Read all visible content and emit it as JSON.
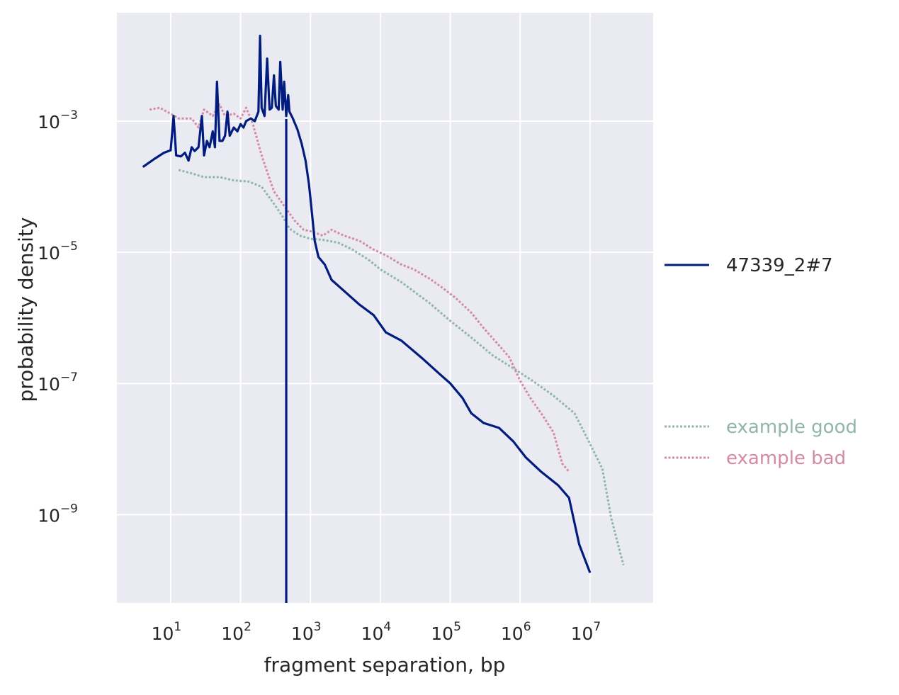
{
  "chart_data": {
    "type": "line",
    "title": "",
    "xlabel": "fragment separation, bp",
    "ylabel": "probability density",
    "xscale": "log",
    "yscale": "log",
    "xlim": [
      1.7,
      80000000
    ],
    "ylim": [
      4.5e-11,
      0.045
    ],
    "grid": true,
    "background": "#eaeaf2",
    "x_ticks": [
      {
        "base": "10",
        "exp": "1",
        "value": 10
      },
      {
        "base": "10",
        "exp": "2",
        "value": 100
      },
      {
        "base": "10",
        "exp": "3",
        "value": 1000
      },
      {
        "base": "10",
        "exp": "4",
        "value": 10000
      },
      {
        "base": "10",
        "exp": "5",
        "value": 100000
      },
      {
        "base": "10",
        "exp": "6",
        "value": 1000000
      },
      {
        "base": "10",
        "exp": "7",
        "value": 10000000
      }
    ],
    "y_ticks": [
      {
        "base": "10",
        "exp": "−3",
        "value": 0.001
      },
      {
        "base": "10",
        "exp": "−5",
        "value": 1e-05
      },
      {
        "base": "10",
        "exp": "−7",
        "value": 1e-07
      },
      {
        "base": "10",
        "exp": "−9",
        "value": 1e-09
      }
    ],
    "vertical_line": {
      "x": 450,
      "color": "#001c7f"
    },
    "series": [
      {
        "name": "47339_2#7",
        "color": "#001c7f",
        "style": "solid",
        "points": [
          [
            4,
            0.0002
          ],
          [
            6,
            0.00027
          ],
          [
            8,
            0.00033
          ],
          [
            10,
            0.00036
          ],
          [
            11,
            0.0012
          ],
          [
            12,
            0.0003
          ],
          [
            14,
            0.00029
          ],
          [
            16,
            0.00033
          ],
          [
            18,
            0.00025
          ],
          [
            20,
            0.0004
          ],
          [
            22,
            0.00035
          ],
          [
            25,
            0.0004
          ],
          [
            28,
            0.0012
          ],
          [
            30,
            0.0003
          ],
          [
            33,
            0.0005
          ],
          [
            36,
            0.0004
          ],
          [
            40,
            0.0007
          ],
          [
            43,
            0.0004
          ],
          [
            46,
            0.004
          ],
          [
            50,
            0.0005
          ],
          [
            55,
            0.0005
          ],
          [
            60,
            0.0006
          ],
          [
            65,
            0.0014
          ],
          [
            70,
            0.0006
          ],
          [
            80,
            0.0008
          ],
          [
            90,
            0.0007
          ],
          [
            100,
            0.0009
          ],
          [
            110,
            0.0008
          ],
          [
            120,
            0.001
          ],
          [
            140,
            0.0011
          ],
          [
            160,
            0.001
          ],
          [
            180,
            0.0014
          ],
          [
            190,
            0.02
          ],
          [
            200,
            0.0016
          ],
          [
            220,
            0.0012
          ],
          [
            240,
            0.009
          ],
          [
            260,
            0.0015
          ],
          [
            280,
            0.0016
          ],
          [
            300,
            0.005
          ],
          [
            320,
            0.0017
          ],
          [
            350,
            0.0015
          ],
          [
            370,
            0.008
          ],
          [
            400,
            0.0015
          ],
          [
            420,
            0.004
          ],
          [
            450,
            0.0012
          ],
          [
            480,
            0.0025
          ],
          [
            500,
            0.0014
          ],
          [
            560,
            0.0011
          ],
          [
            650,
            0.00075
          ],
          [
            750,
            0.00045
          ],
          [
            850,
            0.00025
          ],
          [
            950,
            0.00011
          ],
          [
            1050,
            4e-05
          ],
          [
            1150,
            1.5e-05
          ],
          [
            1300,
            8.5e-06
          ],
          [
            1600,
            6.5e-06
          ],
          [
            2000,
            3.8e-06
          ],
          [
            3000,
            2.6e-06
          ],
          [
            5000,
            1.6e-06
          ],
          [
            8000,
            1.1e-06
          ],
          [
            12000,
            6e-07
          ],
          [
            20000,
            4.5e-07
          ],
          [
            40000,
            2.4e-07
          ],
          [
            70000,
            1.4e-07
          ],
          [
            100000,
            1e-07
          ],
          [
            150000,
            6e-08
          ],
          [
            200000,
            3.5e-08
          ],
          [
            300000,
            2.5e-08
          ],
          [
            500000,
            2.1e-08
          ],
          [
            800000,
            1.3e-08
          ],
          [
            1200000,
            7.5e-09
          ],
          [
            2000000,
            4.5e-09
          ],
          [
            3500000,
            2.8e-09
          ],
          [
            5000000,
            1.8e-09
          ],
          [
            7000000,
            3.5e-10
          ],
          [
            10000000,
            1.3e-10
          ]
        ]
      },
      {
        "name": "example good",
        "color": "#8fb5ad",
        "style": "dotted",
        "points": [
          [
            13,
            0.00018
          ],
          [
            20,
            0.00016
          ],
          [
            30,
            0.00014
          ],
          [
            50,
            0.00014
          ],
          [
            80,
            0.000125
          ],
          [
            130,
            0.00012
          ],
          [
            200,
            0.0001
          ],
          [
            300,
            5.5e-05
          ],
          [
            400,
            3.5e-05
          ],
          [
            500,
            2.3e-05
          ],
          [
            700,
            1.8e-05
          ],
          [
            1000,
            1.6e-05
          ],
          [
            1500,
            1.55e-05
          ],
          [
            2500,
            1.4e-05
          ],
          [
            4000,
            1.1e-05
          ],
          [
            7000,
            7.5e-06
          ],
          [
            10000,
            5.5e-06
          ],
          [
            20000,
            3.5e-06
          ],
          [
            50000,
            1.7e-06
          ],
          [
            100000,
            9e-07
          ],
          [
            200000,
            5e-07
          ],
          [
            400000,
            2.7e-07
          ],
          [
            800000,
            1.7e-07
          ],
          [
            1500000,
            1.1e-07
          ],
          [
            3000000,
            6.5e-08
          ],
          [
            6000000,
            3.5e-08
          ],
          [
            10000000,
            1.2e-08
          ],
          [
            15000000,
            5e-09
          ],
          [
            20000000,
            9e-10
          ],
          [
            30000000,
            1.7e-10
          ]
        ]
      },
      {
        "name": "example bad",
        "color": "#d48aa6",
        "style": "dotted",
        "points": [
          [
            5,
            0.0015
          ],
          [
            7,
            0.0016
          ],
          [
            10,
            0.0013
          ],
          [
            13,
            0.0011
          ],
          [
            20,
            0.0011
          ],
          [
            25,
            0.0008
          ],
          [
            30,
            0.0015
          ],
          [
            40,
            0.0012
          ],
          [
            50,
            0.0018
          ],
          [
            60,
            0.0012
          ],
          [
            80,
            0.0013
          ],
          [
            100,
            0.0011
          ],
          [
            120,
            0.0016
          ],
          [
            150,
            0.0009
          ],
          [
            200,
            0.0003
          ],
          [
            250,
            0.00015
          ],
          [
            300,
            8.5e-05
          ],
          [
            400,
            5.5e-05
          ],
          [
            600,
            3e-05
          ],
          [
            800,
            2.2e-05
          ],
          [
            1000,
            2.1e-05
          ],
          [
            1500,
            1.8e-05
          ],
          [
            2000,
            2.2e-05
          ],
          [
            3000,
            1.8e-05
          ],
          [
            5000,
            1.5e-05
          ],
          [
            8000,
            1.1e-05
          ],
          [
            12000,
            9e-06
          ],
          [
            20000,
            6.5e-06
          ],
          [
            30000,
            5.5e-06
          ],
          [
            50000,
            4e-06
          ],
          [
            80000,
            2.8e-06
          ],
          [
            120000,
            2e-06
          ],
          [
            200000,
            1.2e-06
          ],
          [
            300000,
            7e-07
          ],
          [
            500000,
            3.8e-07
          ],
          [
            700000,
            2.5e-07
          ],
          [
            1000000,
            1.1e-07
          ],
          [
            1400000,
            6e-08
          ],
          [
            2000000,
            3.5e-08
          ],
          [
            3000000,
            1.8e-08
          ],
          [
            4000000,
            6e-09
          ],
          [
            5000000,
            4.5e-09
          ]
        ]
      }
    ],
    "legend": {
      "position": "right",
      "entries": [
        {
          "label": "47339_2#7",
          "color": "#001c7f",
          "style": "solid"
        },
        {
          "label": "example good",
          "color": "#8fb5ad",
          "style": "dotted"
        },
        {
          "label": "example bad",
          "color": "#d48aa6",
          "style": "dotted"
        }
      ]
    }
  }
}
